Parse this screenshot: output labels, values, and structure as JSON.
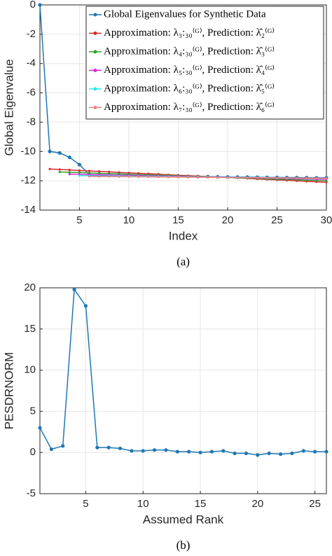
{
  "chart_data": [
    {
      "type": "line",
      "caption": "(a)",
      "x_label": "Index",
      "y_label": "Global Eigenvalue",
      "xlim": [
        1,
        30
      ],
      "xticks": [
        5,
        10,
        15,
        20,
        25,
        30
      ],
      "ylim": [
        -14,
        0
      ],
      "yticks": [
        0,
        -2,
        -4,
        -6,
        -8,
        -10,
        -12,
        -14
      ],
      "grid": true,
      "legend": "upper right",
      "x": [
        1,
        2,
        3,
        4,
        5,
        6,
        7,
        8,
        9,
        10,
        11,
        12,
        13,
        14,
        15,
        16,
        17,
        18,
        19,
        20,
        21,
        22,
        23,
        24,
        25,
        26,
        27,
        28,
        29,
        30
      ],
      "series": [
        {
          "name": "Global Eigenvalues for Synthetic Data",
          "color": "#1f77b4",
          "values": [
            0,
            -10,
            -10.1,
            -10.4,
            -10.9,
            -11.6,
            -11.62,
            -11.63,
            -11.64,
            -11.65,
            -11.66,
            -11.67,
            -11.68,
            -11.69,
            -11.7,
            -11.71,
            -11.72,
            -11.72,
            -11.73,
            -11.74,
            -11.75,
            -11.75,
            -11.76,
            -11.77,
            -11.77,
            -11.78,
            -11.78,
            -11.79,
            -11.8,
            -11.8
          ]
        },
        {
          "name": "Approximation: λ₃:₃₀⁽ᴳ⁾, Prediction: λ̂₂⁽ᴳ⁾",
          "color": "#d62728",
          "values": [
            null,
            -11.2,
            -11.23,
            -11.26,
            -11.3,
            -11.33,
            -11.36,
            -11.39,
            -11.43,
            -11.46,
            -11.49,
            -11.52,
            -11.55,
            -11.59,
            -11.62,
            -11.65,
            -11.68,
            -11.71,
            -11.75,
            -11.78,
            -11.81,
            -11.84,
            -11.88,
            -11.91,
            -11.94,
            -11.97,
            -12.0,
            -12.04,
            -12.07,
            -12.1
          ]
        },
        {
          "name": "Approximation: λ₄:₃₀⁽ᴳ⁾, Prediction: λ̂₃⁽ᴳ⁾",
          "color": "#2ca02c",
          "values": [
            null,
            null,
            -11.4,
            -11.42,
            -11.44,
            -11.47,
            -11.49,
            -11.51,
            -11.53,
            -11.56,
            -11.58,
            -11.6,
            -11.62,
            -11.64,
            -11.67,
            -11.69,
            -11.71,
            -11.73,
            -11.76,
            -11.78,
            -11.8,
            -11.82,
            -11.84,
            -11.87,
            -11.89,
            -11.91,
            -11.93,
            -11.96,
            -11.98,
            -12.0
          ]
        },
        {
          "name": "Approximation: λ₅:₃₀⁽ᴳ⁾, Prediction: λ̂₄⁽ᴳ⁾",
          "color": "#d62ad6",
          "values": [
            null,
            null,
            null,
            -11.55,
            -11.56,
            -11.58,
            -11.59,
            -11.6,
            -11.62,
            -11.63,
            -11.64,
            -11.66,
            -11.67,
            -11.69,
            -11.7,
            -11.71,
            -11.73,
            -11.74,
            -11.75,
            -11.77,
            -11.78,
            -11.79,
            -11.81,
            -11.82,
            -11.83,
            -11.85,
            -11.86,
            -11.87,
            -11.89,
            -11.9
          ]
        },
        {
          "name": "Approximation: λ₆:₃₀⁽ᴳ⁾, Prediction: λ̂₅⁽ᴳ⁾",
          "color": "#2ee6f0",
          "values": [
            null,
            null,
            null,
            null,
            -11.65,
            -11.66,
            -11.67,
            -11.67,
            -11.68,
            -11.69,
            -11.7,
            -11.7,
            -11.71,
            -11.72,
            -11.73,
            -11.74,
            -11.74,
            -11.75,
            -11.76,
            -11.77,
            -11.78,
            -11.78,
            -11.79,
            -11.8,
            -11.81,
            -11.82,
            -11.82,
            -11.83,
            -11.84,
            -11.85
          ]
        },
        {
          "name": "Approximation: λ₇:₃₀⁽ᴳ⁾, Prediction: λ̂₆⁽ᴳ⁾",
          "color": "#f08080",
          "values": [
            null,
            null,
            null,
            null,
            null,
            -11.7,
            -11.71,
            -11.71,
            -11.72,
            -11.72,
            -11.73,
            -11.73,
            -11.74,
            -11.74,
            -11.75,
            -11.76,
            -11.76,
            -11.77,
            -11.77,
            -11.78,
            -11.78,
            -11.79,
            -11.79,
            -11.8,
            -11.8,
            -11.81,
            -11.82,
            -11.82,
            -11.83,
            -11.84
          ]
        }
      ]
    },
    {
      "type": "line",
      "caption": "(b)",
      "x_label": "Assumed Rank",
      "y_label": "PESDRNORM",
      "xlim": [
        1,
        26
      ],
      "xticks": [
        5,
        10,
        15,
        20,
        25
      ],
      "ylim": [
        -5,
        20
      ],
      "yticks": [
        -5,
        0,
        5,
        10,
        15,
        20
      ],
      "grid": true,
      "x": [
        1,
        2,
        3,
        4,
        5,
        6,
        7,
        8,
        9,
        10,
        11,
        12,
        13,
        14,
        15,
        16,
        17,
        18,
        19,
        20,
        21,
        22,
        23,
        24,
        25,
        26
      ],
      "series": [
        {
          "color": "#1f77b4",
          "values": [
            3,
            0.4,
            0.8,
            19.8,
            17.8,
            0.6,
            0.6,
            0.5,
            0.2,
            0.2,
            0.3,
            0.3,
            0.1,
            0.1,
            0.0,
            0.1,
            0.2,
            -0.1,
            -0.1,
            -0.3,
            -0.1,
            -0.2,
            -0.1,
            0.2,
            0.1,
            0.1
          ]
        }
      ]
    }
  ]
}
